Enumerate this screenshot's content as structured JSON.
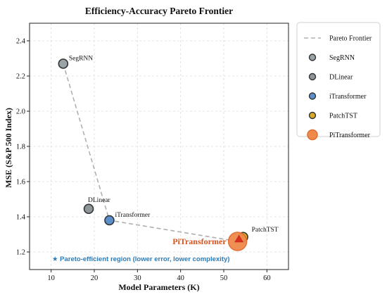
{
  "chart_data": {
    "type": "scatter",
    "title": "Efficiency-Accuracy Pareto Frontier",
    "xlabel": "Model Parameters (K)",
    "ylabel": "MSE (S&P 500 Index)",
    "xlim": [
      5,
      65
    ],
    "ylim": [
      1.1,
      2.5
    ],
    "xticks": [
      10,
      20,
      30,
      40,
      50,
      60
    ],
    "yticks": [
      1.2,
      1.4,
      1.6,
      1.8,
      2.0,
      2.2,
      2.4
    ],
    "grid": true,
    "legend_position": "right",
    "pareto_frontier": {
      "name": "Pareto Frontier",
      "color": "#b0b0b0",
      "points": [
        [
          12.8,
          2.27
        ],
        [
          23.5,
          1.38
        ],
        [
          53.2,
          1.26
        ]
      ]
    },
    "series": [
      {
        "name": "SegRNN",
        "x": 12.8,
        "y": 2.27,
        "color": "#9aa3a6",
        "label": "SegRNN"
      },
      {
        "name": "DLinear",
        "x": 18.7,
        "y": 1.445,
        "color": "#8f969a",
        "label": "DLinear"
      },
      {
        "name": "iTransformer",
        "x": 23.5,
        "y": 1.38,
        "color": "#5b8fc9",
        "label": "iTransformer"
      },
      {
        "name": "PatchTST",
        "x": 54.5,
        "y": 1.285,
        "color": "#d9a92e",
        "label": "PatchTST"
      },
      {
        "name": "PiTransformer",
        "x": 53.2,
        "y": 1.26,
        "color": "#f08a4b",
        "label": "PiTransformer"
      }
    ],
    "annotation": "★ Pareto-efficient region (lower error, lower complexity)",
    "annotation_color": "#2b7bb9",
    "highlight_color": "#d9531e"
  }
}
